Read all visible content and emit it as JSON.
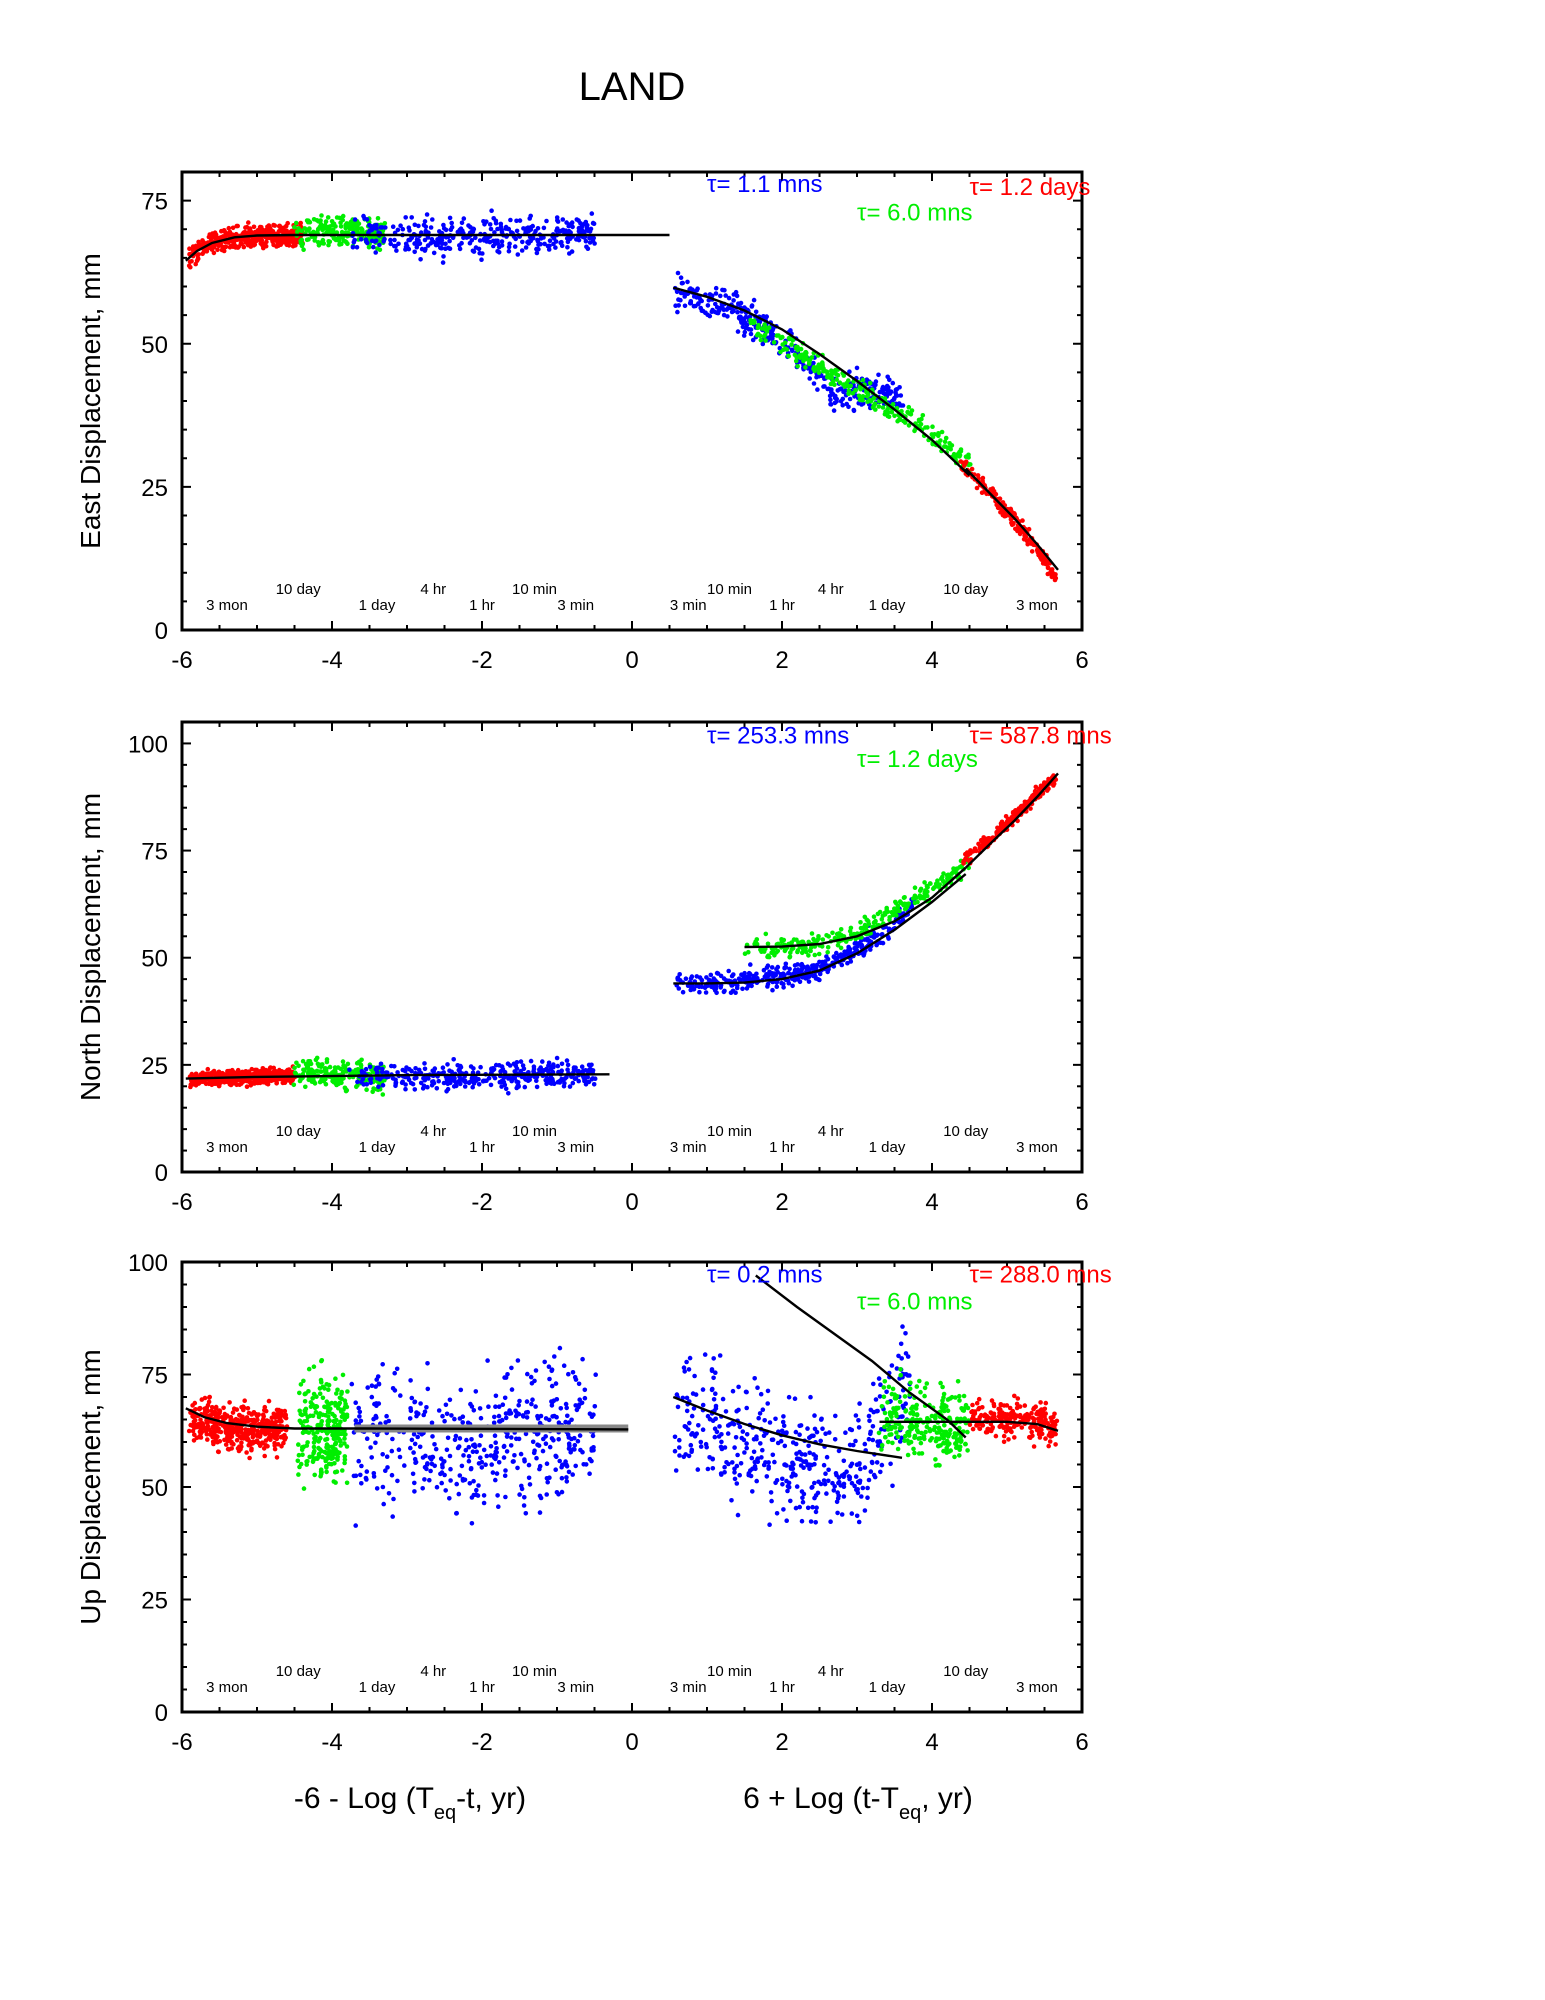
{
  "figure": {
    "title": "LAND",
    "xlabel_left": "-6 - Log (T_eq-t, yr)",
    "xlabel_right": "6 + Log (t-T_eq, yr)",
    "colors": {
      "red": "#ff0000",
      "green": "#00ee00",
      "blue": "#0000ff",
      "fit": "#000000",
      "band": "#888888"
    }
  },
  "chart_data": [
    {
      "type": "scatter",
      "ylabel": "East Displacement, mm",
      "xlim": [
        -6,
        6
      ],
      "ylim": [
        0,
        80
      ],
      "xticks": [
        -6,
        -4,
        -2,
        0,
        2,
        4,
        6
      ],
      "xtick_labels": [
        "-6",
        "-4",
        "-2",
        "0",
        "2",
        "4",
        "6"
      ],
      "yticks": [
        0,
        25,
        50,
        75
      ],
      "ytick_labels": [
        "0",
        "25",
        "50",
        "75"
      ],
      "tau_labels": [
        {
          "text": "τ= 1.1 mns",
          "color": "blue",
          "x": 1.0,
          "y": 76.5
        },
        {
          "text": "τ= 6.0 mns",
          "color": "green",
          "x": 3.0,
          "y": 71.5
        },
        {
          "text": "τ= 1.2 days",
          "color": "red",
          "x": 4.5,
          "y": 76
        }
      ],
      "series": [
        {
          "color": "red",
          "pts": [
            [
              -5.9,
              65
            ],
            [
              -5.8,
              66.5
            ],
            [
              -5.6,
              67.5
            ],
            [
              -5.4,
              68
            ],
            [
              -5.2,
              68.5
            ],
            [
              -5.0,
              68.8
            ],
            [
              -4.8,
              69
            ],
            [
              -4.6,
              69
            ],
            [
              -4.4,
              69.2
            ]
          ],
          "spread": 1.6,
          "n": 420
        },
        {
          "color": "green",
          "pts": [
            [
              -4.5,
              69
            ],
            [
              -4.2,
              69.5
            ],
            [
              -3.9,
              69.5
            ],
            [
              -3.6,
              69.3
            ],
            [
              -3.3,
              69.2
            ]
          ],
          "spread": 2.2,
          "n": 230
        },
        {
          "color": "blue",
          "pts": [
            [
              -3.75,
              69
            ],
            [
              -3.4,
              69
            ],
            [
              -3,
              68.5
            ],
            [
              -2.5,
              68.5
            ],
            [
              -2,
              68.8
            ],
            [
              -1.5,
              69.2
            ],
            [
              -1.0,
              69.4
            ],
            [
              -0.5,
              69.5
            ]
          ],
          "spread": 2.8,
          "n": 360
        },
        {
          "color": "blue",
          "pts": [
            [
              0.55,
              59
            ],
            [
              1.0,
              57.5
            ],
            [
              1.5,
              55
            ],
            [
              2.0,
              51
            ],
            [
              2.4,
              46
            ],
            [
              2.7,
              41
            ],
            [
              3.0,
              42
            ],
            [
              3.3,
              42
            ],
            [
              3.6,
              40
            ]
          ],
          "spread": 2.6,
          "n": 380
        },
        {
          "color": "green",
          "pts": [
            [
              1.5,
              54
            ],
            [
              2.0,
              50
            ],
            [
              2.5,
              46
            ],
            [
              3.0,
              42
            ],
            [
              3.5,
              38
            ],
            [
              4.0,
              34
            ],
            [
              4.5,
              29
            ]
          ],
          "spread": 1.8,
          "n": 260
        },
        {
          "color": "red",
          "pts": [
            [
              4.4,
              29
            ],
            [
              4.7,
              25
            ],
            [
              5.0,
              20.5
            ],
            [
              5.3,
              16
            ],
            [
              5.5,
              12.5
            ],
            [
              5.65,
              9
            ]
          ],
          "spread": 1.1,
          "n": 220
        }
      ],
      "fits": [
        {
          "color": "fit",
          "pts": [
            [
              -5.95,
              64.5
            ],
            [
              -5.8,
              66.2
            ],
            [
              -5.6,
              67.6
            ],
            [
              -5.3,
              68.6
            ],
            [
              -5,
              68.9
            ],
            [
              -4.5,
              69
            ],
            [
              -4,
              69
            ],
            [
              -2,
              69
            ],
            [
              0.5,
              69
            ]
          ]
        },
        {
          "color": "fit",
          "pts": [
            [
              0.55,
              59.8
            ],
            [
              1.0,
              58.2
            ],
            [
              1.5,
              55.8
            ],
            [
              2.0,
              52.5
            ],
            [
              2.5,
              48.2
            ],
            [
              3.0,
              43.5
            ],
            [
              3.5,
              38.5
            ],
            [
              4.0,
              33.2
            ],
            [
              4.5,
              27
            ]
          ]
        },
        {
          "color": "fit",
          "pts": [
            [
              4.45,
              28.2
            ],
            [
              4.8,
              23.5
            ],
            [
              5.1,
              19.5
            ],
            [
              5.4,
              15
            ],
            [
              5.68,
              10.5
            ]
          ]
        }
      ]
    },
    {
      "type": "scatter",
      "ylabel": "North Displacement, mm",
      "xlim": [
        -6,
        6
      ],
      "ylim": [
        0,
        105
      ],
      "xticks": [
        -6,
        -4,
        -2,
        0,
        2,
        4,
        6
      ],
      "xtick_labels": [
        "-6",
        "-4",
        "-2",
        "0",
        "2",
        "4",
        "6"
      ],
      "yticks": [
        0,
        25,
        50,
        75,
        100
      ],
      "ytick_labels": [
        "0",
        "25",
        "50",
        "75",
        "100"
      ],
      "tau_labels": [
        {
          "text": "τ= 253.3 mns",
          "color": "blue",
          "x": 1.0,
          "y": 100
        },
        {
          "text": "τ= 1.2 days",
          "color": "green",
          "x": 3.0,
          "y": 94.5
        },
        {
          "text": "τ= 587.8 mns",
          "color": "red",
          "x": 4.5,
          "y": 100
        }
      ],
      "series": [
        {
          "color": "red",
          "pts": [
            [
              -5.9,
              21.5
            ],
            [
              -5.5,
              22
            ],
            [
              -5,
              22.2
            ],
            [
              -4.5,
              22.5
            ]
          ],
          "spread": 1.5,
          "n": 420
        },
        {
          "color": "green",
          "pts": [
            [
              -4.5,
              23
            ],
            [
              -4.1,
              23
            ],
            [
              -3.7,
              22.5
            ],
            [
              -3.3,
              22.3
            ]
          ],
          "spread": 2.8,
          "n": 230
        },
        {
          "color": "blue",
          "pts": [
            [
              -3.75,
              22.5
            ],
            [
              -3.2,
              22.5
            ],
            [
              -2.5,
              22.3
            ],
            [
              -2,
              22.5
            ],
            [
              -1.5,
              22.6
            ],
            [
              -1,
              22.8
            ],
            [
              -0.5,
              23
            ]
          ],
          "spread": 2.6,
          "n": 360
        },
        {
          "color": "blue",
          "pts": [
            [
              0.55,
              44.5
            ],
            [
              1.0,
              44
            ],
            [
              1.5,
              44.5
            ],
            [
              2.0,
              46
            ],
            [
              2.5,
              47
            ],
            [
              3.0,
              52
            ],
            [
              3.5,
              58
            ],
            [
              3.75,
              63
            ]
          ],
          "spread": 2.2,
          "n": 380
        },
        {
          "color": "green",
          "pts": [
            [
              1.5,
              52.5
            ],
            [
              2.5,
              53
            ],
            [
              3.0,
              56
            ],
            [
              3.5,
              61
            ],
            [
              4.0,
              66
            ],
            [
              4.5,
              72
            ]
          ],
          "spread": 2,
          "n": 260
        },
        {
          "color": "red",
          "pts": [
            [
              4.4,
              72
            ],
            [
              4.8,
              78
            ],
            [
              5.1,
              83
            ],
            [
              5.4,
              88
            ],
            [
              5.65,
              92
            ]
          ],
          "spread": 1.3,
          "n": 220
        }
      ],
      "fits": [
        {
          "color": "fit",
          "pts": [
            [
              -5.95,
              21.8
            ],
            [
              -5,
              22.2
            ],
            [
              -3,
              22.6
            ],
            [
              -0.3,
              22.8
            ]
          ]
        },
        {
          "color": "fit",
          "pts": [
            [
              0.55,
              44
            ],
            [
              1.0,
              44
            ],
            [
              1.5,
              44.2
            ],
            [
              2.0,
              45
            ],
            [
              2.5,
              47
            ],
            [
              3.0,
              51
            ],
            [
              3.5,
              56.5
            ],
            [
              4.0,
              63
            ],
            [
              4.45,
              69.5
            ]
          ]
        },
        {
          "color": "fit",
          "pts": [
            [
              1.5,
              52.5
            ],
            [
              2.0,
              52.6
            ],
            [
              2.5,
              53.2
            ],
            [
              3.0,
              55
            ],
            [
              3.5,
              58.5
            ],
            [
              4.0,
              64
            ],
            [
              4.45,
              71
            ]
          ]
        },
        {
          "color": "fit",
          "pts": [
            [
              4.45,
              71
            ],
            [
              4.8,
              77
            ],
            [
              5.1,
              82
            ],
            [
              5.4,
              87.5
            ],
            [
              5.68,
              93
            ]
          ]
        }
      ]
    },
    {
      "type": "scatter",
      "ylabel": "Up Displacement, mm",
      "xlim": [
        -6,
        6
      ],
      "ylim": [
        0,
        100
      ],
      "xticks": [
        -6,
        -4,
        -2,
        0,
        2,
        4,
        6
      ],
      "xtick_labels": [
        "-6",
        "-4",
        "-2",
        "0",
        "2",
        "4",
        "6"
      ],
      "yticks": [
        0,
        25,
        50,
        75,
        100
      ],
      "ytick_labels": [
        "0",
        "25",
        "50",
        "75",
        "100"
      ],
      "tau_labels": [
        {
          "text": "τ= 0.2 mns",
          "color": "blue",
          "x": 1.0,
          "y": 95.5
        },
        {
          "text": "τ= 6.0 mns",
          "color": "green",
          "x": 3.0,
          "y": 89.5
        },
        {
          "text": "τ= 288.0 mns",
          "color": "red",
          "x": 4.5,
          "y": 95.5
        }
      ],
      "series": [
        {
          "color": "red",
          "pts": [
            [
              -5.9,
              65
            ],
            [
              -5.5,
              63.5
            ],
            [
              -5.0,
              63
            ],
            [
              -4.6,
              63
            ]
          ],
          "spread": 4.5,
          "n": 420
        },
        {
          "color": "green",
          "pts": [
            [
              -4.45,
              63
            ],
            [
              -4.1,
              63
            ],
            [
              -3.8,
              63
            ]
          ],
          "spread": 10,
          "n": 260
        },
        {
          "color": "blue",
          "pts": [
            [
              -3.75,
              62
            ],
            [
              -3.3,
              63
            ],
            [
              -2.8,
              61
            ],
            [
              -2.3,
              58
            ],
            [
              -1.8,
              60
            ],
            [
              -1.2,
              62
            ],
            [
              -0.5,
              63
            ]
          ],
          "spread": 13,
          "n": 460
        },
        {
          "color": "blue",
          "pts": [
            [
              0.55,
              65
            ],
            [
              1.2,
              62
            ],
            [
              1.8,
              58
            ],
            [
              2.4,
              55
            ],
            [
              2.9,
              52
            ],
            [
              3.3,
              62
            ],
            [
              3.7,
              74
            ]
          ],
          "spread": 12,
          "n": 440
        },
        {
          "color": "green",
          "pts": [
            [
              3.3,
              66
            ],
            [
              3.7,
              65
            ],
            [
              4.1,
              64
            ],
            [
              4.5,
              64
            ]
          ],
          "spread": 7,
          "n": 260
        },
        {
          "color": "red",
          "pts": [
            [
              4.5,
              65
            ],
            [
              5.0,
              65
            ],
            [
              5.4,
              64.5
            ],
            [
              5.65,
              63
            ]
          ],
          "spread": 3.5,
          "n": 220
        }
      ],
      "fits": [
        {
          "color": "fit",
          "pts": [
            [
              -5.95,
              67.5
            ],
            [
              -5.7,
              65.5
            ],
            [
              -5.4,
              64.2
            ],
            [
              -5.0,
              63.4
            ],
            [
              -4.5,
              63
            ],
            [
              -3.5,
              63
            ],
            [
              -0.05,
              62.8
            ]
          ]
        },
        {
          "color": "fit",
          "pts": [
            [
              0.55,
              70
            ],
            [
              1.0,
              67
            ],
            [
              1.5,
              64
            ],
            [
              2.0,
              61.5
            ],
            [
              2.5,
              59.5
            ],
            [
              3.0,
              58
            ],
            [
              3.6,
              56.5
            ]
          ]
        },
        {
          "color": "fit",
          "pts": [
            [
              1.65,
              97
            ],
            [
              2.2,
              90
            ],
            [
              2.7,
              84
            ],
            [
              3.2,
              78
            ],
            [
              3.7,
              71
            ],
            [
              4.2,
              65
            ],
            [
              4.45,
              61
            ]
          ]
        },
        {
          "color": "fit",
          "pts": [
            [
              3.3,
              64.5
            ],
            [
              4.5,
              64.5
            ],
            [
              5.0,
              64.5
            ],
            [
              5.4,
              64
            ],
            [
              5.68,
              62.5
            ]
          ]
        }
      ],
      "band": {
        "x0": -3.7,
        "x1": -0.05,
        "y": 63
      }
    }
  ],
  "intervals_left": [
    {
      "text": "3 mon",
      "x": -5.4,
      "dy": 16
    },
    {
      "text": "10 day",
      "x": -4.45,
      "dy": 0
    },
    {
      "text": "1 day",
      "x": -3.4,
      "dy": 16
    },
    {
      "text": "4 hr",
      "x": -2.65,
      "dy": 0
    },
    {
      "text": "1 hr",
      "x": -2.0,
      "dy": 16
    },
    {
      "text": "10 min",
      "x": -1.3,
      "dy": 0
    },
    {
      "text": "3 min",
      "x": -0.75,
      "dy": 16
    }
  ],
  "intervals_right": [
    {
      "text": "3 min",
      "x": 0.75,
      "dy": 16
    },
    {
      "text": "10 min",
      "x": 1.3,
      "dy": 0
    },
    {
      "text": "1 hr",
      "x": 2.0,
      "dy": 16
    },
    {
      "text": "4 hr",
      "x": 2.65,
      "dy": 0
    },
    {
      "text": "1 day",
      "x": 3.4,
      "dy": 16
    },
    {
      "text": "10 day",
      "x": 4.45,
      "dy": 0
    },
    {
      "text": "3 mon",
      "x": 5.4,
      "dy": 16
    }
  ]
}
